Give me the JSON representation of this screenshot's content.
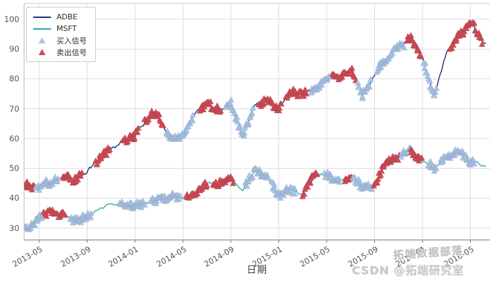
{
  "figure": {
    "xlabel": "日期"
  },
  "chart_data": {
    "type": "line",
    "title": "",
    "xlabel": "日期",
    "ylabel": "",
    "grid": true,
    "legend_position": "upper left",
    "x_tick_labels": [
      "2013-05",
      "2013-09",
      "2014-01",
      "2014-05",
      "2014-09",
      "2015-01",
      "2015-05",
      "2015-09",
      "2016-01",
      "2016-05"
    ],
    "x_tick_t": [
      1,
      5,
      9,
      13,
      17,
      21,
      25,
      29,
      33,
      37
    ],
    "x_range_t": [
      -0.6,
      38.3
    ],
    "anchor_start_month": "2013-04",
    "anchor_interval_months": 1,
    "yticks": [
      30,
      40,
      50,
      60,
      70,
      80,
      90,
      100
    ],
    "ylim": [
      26,
      105.3
    ],
    "series": [
      {
        "name": "ADBE",
        "color": "#1b2f8a",
        "values": [
          44.5,
          43.5,
          45,
          47.5,
          47,
          48.5,
          53,
          56.5,
          59.5,
          61.5,
          67,
          68,
          60.5,
          61,
          68,
          72.5,
          70,
          72,
          62.5,
          71.5,
          74,
          71,
          77.5,
          75.5,
          77,
          79.5,
          81,
          84.5,
          75,
          82,
          87,
          91,
          94.5,
          87,
          74,
          88.5,
          94,
          99,
          91.5
        ]
      },
      {
        "name": "MSFT",
        "color": "#28a7a7",
        "values": [
          30.5,
          33.5,
          35.5,
          34.5,
          32.5,
          33.5,
          35.5,
          38,
          37,
          36.5,
          38,
          39.5,
          40,
          39.5,
          41.5,
          44.5,
          45,
          46.5,
          43.5,
          49.5,
          47,
          41,
          43.5,
          41.5,
          48,
          47.5,
          45.5,
          46.5,
          43.5,
          44.5,
          52.5,
          54,
          56,
          52.5,
          50,
          54.5,
          56,
          51.5,
          50.5
        ]
      }
    ],
    "signals": {
      "buy_label": "买入信号",
      "buy_color": "#a9c5e8",
      "sell_label": "卖出信号",
      "sell_color": "#d14c57",
      "segments": [
        {
          "series": 0,
          "type": "sell",
          "from": -0.55,
          "to": 0.6
        },
        {
          "series": 0,
          "type": "buy",
          "from": 0.7,
          "to": 2.6
        },
        {
          "series": 0,
          "type": "sell",
          "from": 3.0,
          "to": 4.6
        },
        {
          "series": 0,
          "type": "sell",
          "from": 5.7,
          "to": 6.9
        },
        {
          "series": 0,
          "type": "sell",
          "from": 8.0,
          "to": 9.3
        },
        {
          "series": 0,
          "type": "sell",
          "from": 9.8,
          "to": 11.4
        },
        {
          "series": 0,
          "type": "buy",
          "from": 11.6,
          "to": 13.9
        },
        {
          "series": 0,
          "type": "sell",
          "from": 14.4,
          "to": 16.2
        },
        {
          "series": 0,
          "type": "buy",
          "from": 16.6,
          "to": 18.9
        },
        {
          "series": 0,
          "type": "sell",
          "from": 19.3,
          "to": 21.2
        },
        {
          "series": 0,
          "type": "sell",
          "from": 21.6,
          "to": 23.3
        },
        {
          "series": 0,
          "type": "buy",
          "from": 23.7,
          "to": 25.2
        },
        {
          "series": 0,
          "type": "sell",
          "from": 25.5,
          "to": 27.4
        },
        {
          "series": 0,
          "type": "buy",
          "from": 27.6,
          "to": 28.7
        },
        {
          "series": 0,
          "type": "buy",
          "from": 29.2,
          "to": 31.5
        },
        {
          "series": 0,
          "type": "sell",
          "from": 31.7,
          "to": 32.9
        },
        {
          "series": 0,
          "type": "buy",
          "from": 33.1,
          "to": 34.2
        },
        {
          "series": 0,
          "type": "sell",
          "from": 35.3,
          "to": 38.0
        },
        {
          "series": 1,
          "type": "buy",
          "from": -0.3,
          "to": 1.2
        },
        {
          "series": 1,
          "type": "sell",
          "from": 1.4,
          "to": 3.2
        },
        {
          "series": 1,
          "type": "buy",
          "from": 3.6,
          "to": 5.4
        },
        {
          "series": 1,
          "type": "buy",
          "from": 7.7,
          "to": 9.8
        },
        {
          "series": 1,
          "type": "buy",
          "from": 10.3,
          "to": 12.8
        },
        {
          "series": 1,
          "type": "sell",
          "from": 13.3,
          "to": 15.0
        },
        {
          "series": 1,
          "type": "sell",
          "from": 15.5,
          "to": 17.2
        },
        {
          "series": 1,
          "type": "buy",
          "from": 18.2,
          "to": 20.1
        },
        {
          "series": 1,
          "type": "buy",
          "from": 20.4,
          "to": 22.4
        },
        {
          "series": 1,
          "type": "sell",
          "from": 23.0,
          "to": 24.2
        },
        {
          "series": 1,
          "type": "buy",
          "from": 24.8,
          "to": 26.1
        },
        {
          "series": 1,
          "type": "sell",
          "from": 26.5,
          "to": 27.1
        },
        {
          "series": 1,
          "type": "buy",
          "from": 27.2,
          "to": 28.8
        },
        {
          "series": 1,
          "type": "sell",
          "from": 28.95,
          "to": 31.05
        },
        {
          "series": 1,
          "type": "buy",
          "from": 31.2,
          "to": 31.95
        },
        {
          "series": 1,
          "type": "sell",
          "from": 32.0,
          "to": 32.95
        },
        {
          "series": 1,
          "type": "buy",
          "from": 33.5,
          "to": 34.15
        },
        {
          "series": 1,
          "type": "buy",
          "from": 34.5,
          "to": 37.3
        }
      ]
    },
    "legend": [
      {
        "label": "ADBE",
        "marker": "line",
        "color": "#1b2f8a"
      },
      {
        "label": "MSFT",
        "marker": "line",
        "color": "#28a7a7"
      },
      {
        "label": "买入信号",
        "marker": "triangle",
        "color": "#a9c5e8"
      },
      {
        "label": "卖出信号",
        "marker": "triangle",
        "color": "#d14c57"
      }
    ],
    "watermark_lines": [
      "拓端数据部落",
      "CSDN @拓端研究室"
    ],
    "seed": 11,
    "noise_amp": [
      1.15,
      0.7
    ]
  }
}
